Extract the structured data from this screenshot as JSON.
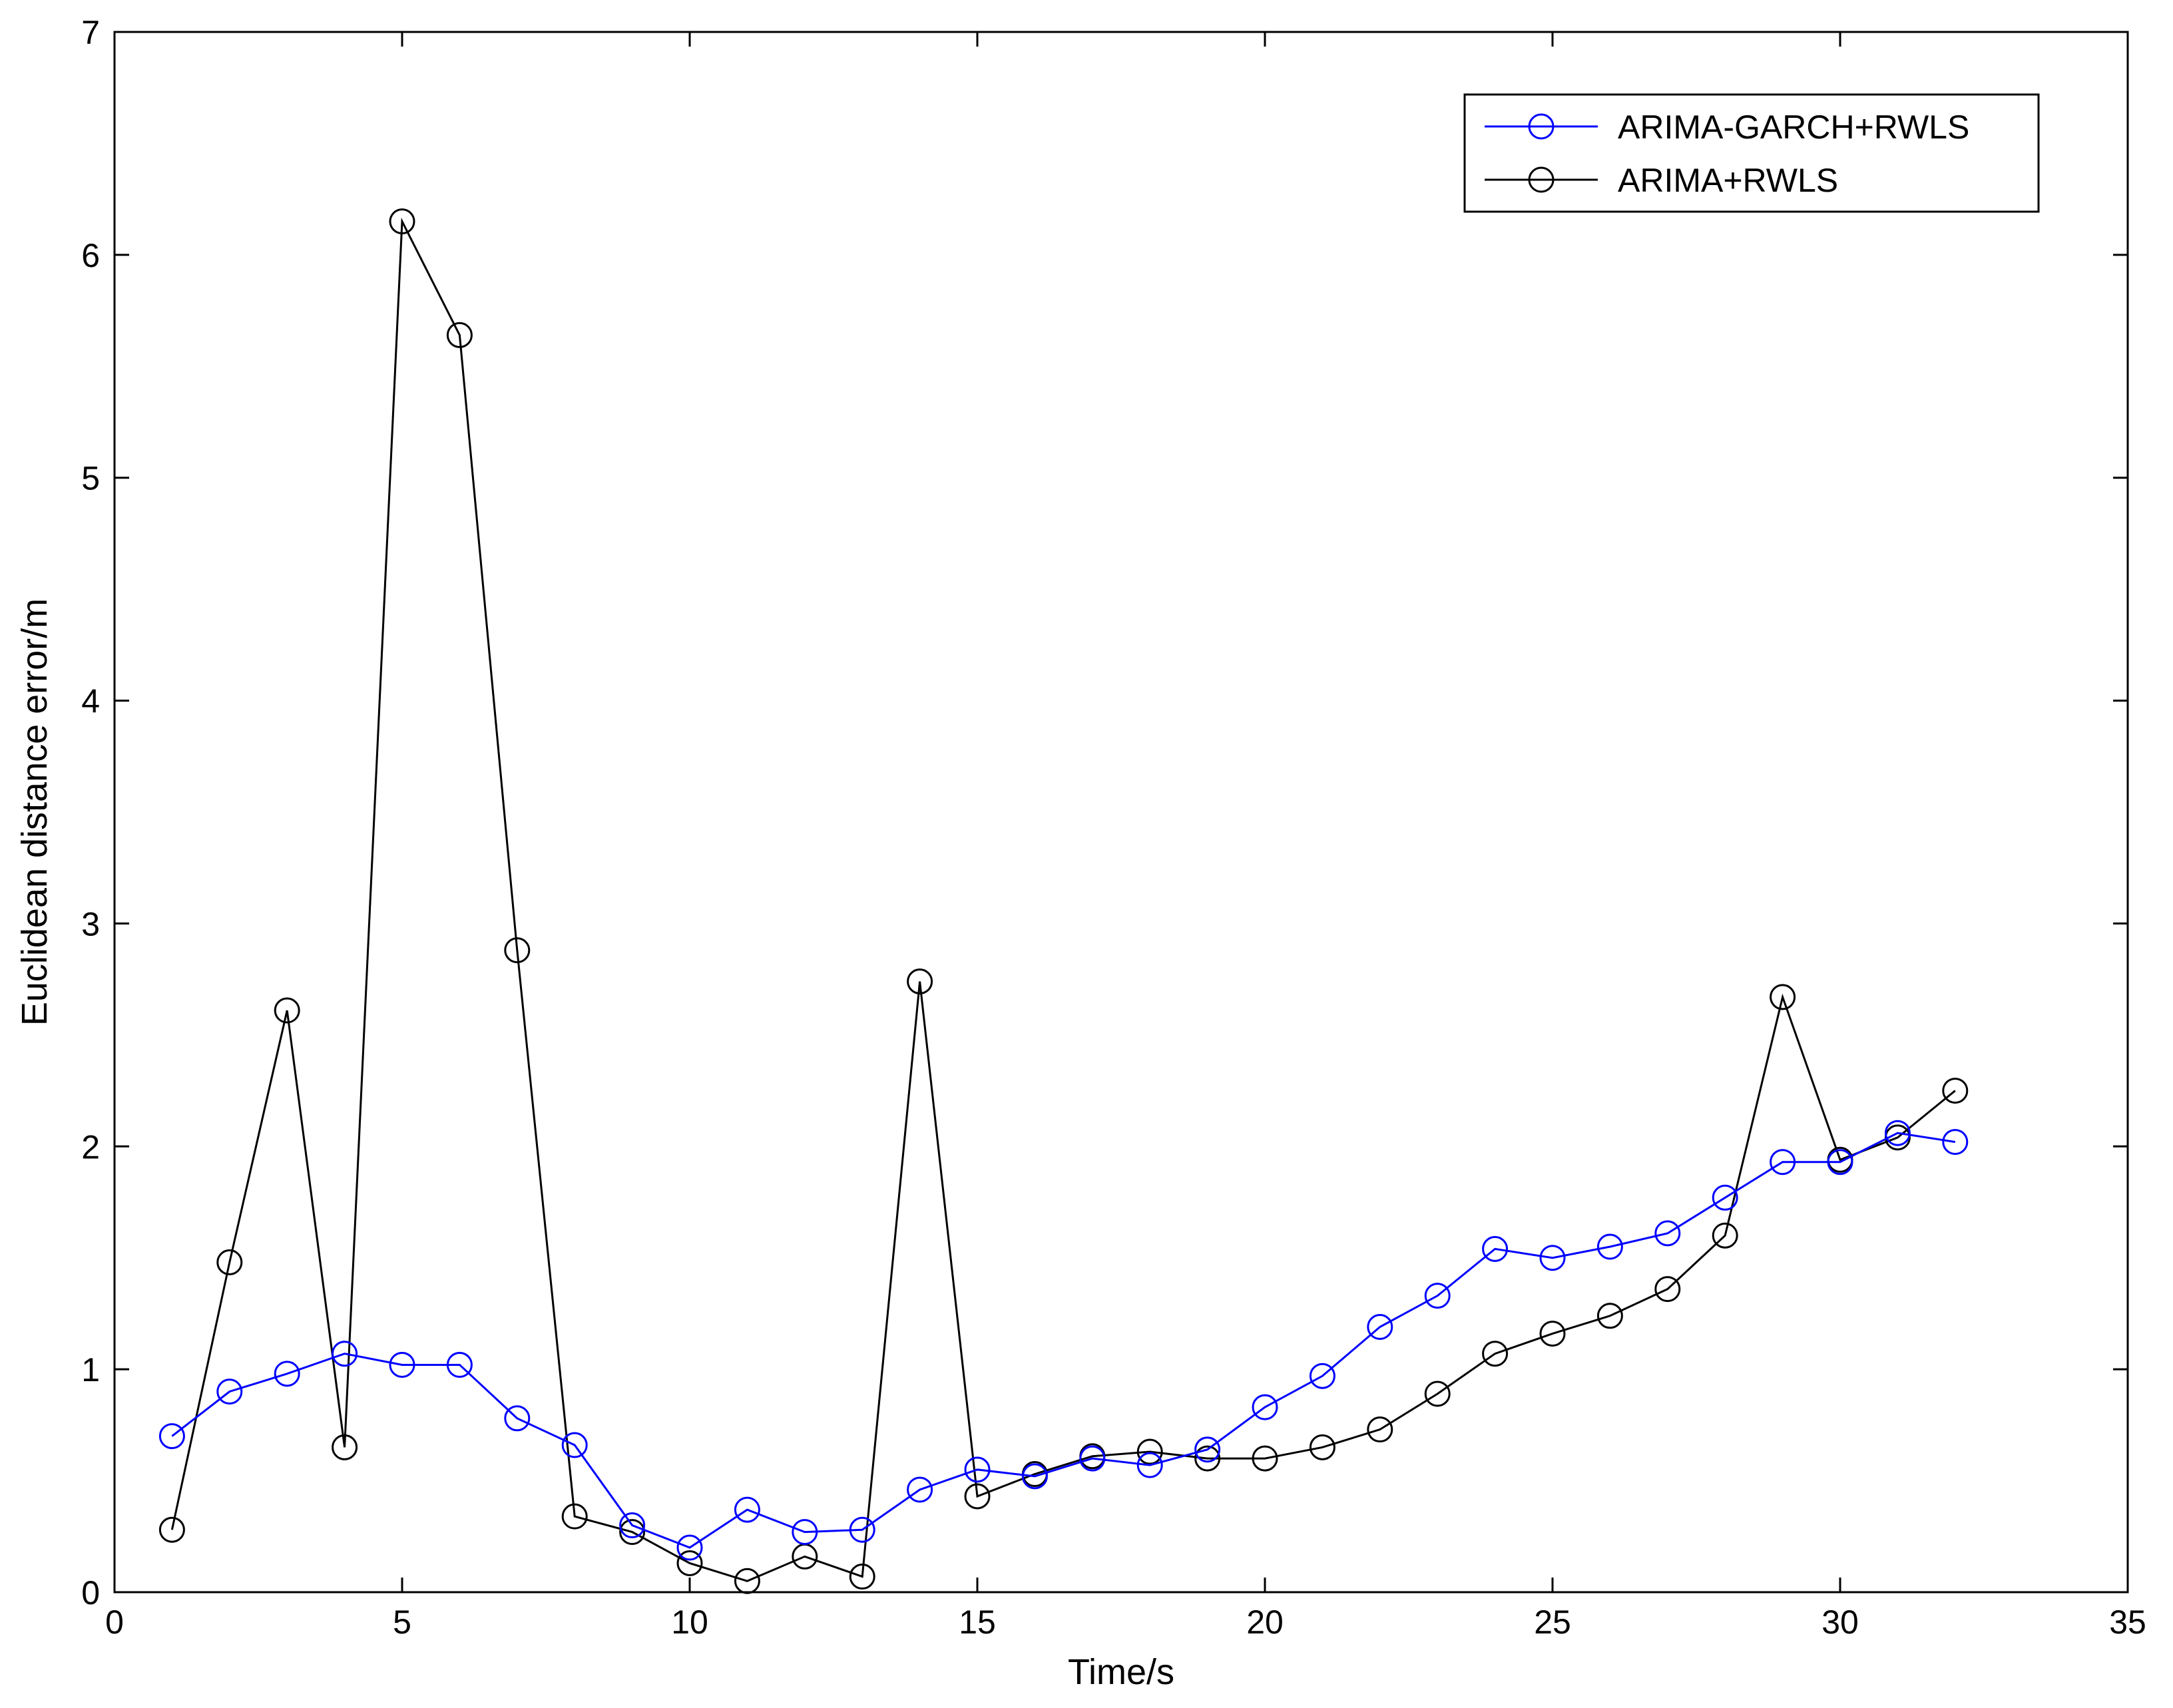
{
  "chart_data": {
    "type": "line",
    "xlabel": "Time/s",
    "ylabel": "Euclidean distance error/m",
    "xlim": [
      0,
      35
    ],
    "ylim": [
      0,
      7
    ],
    "xticks": [
      0,
      5,
      10,
      15,
      20,
      25,
      30,
      35
    ],
    "yticks": [
      0,
      1,
      2,
      3,
      4,
      5,
      6,
      7
    ],
    "grid": false,
    "legend_position": "top-right",
    "x": [
      1,
      2,
      3,
      4,
      5,
      6,
      7,
      8,
      9,
      10,
      11,
      12,
      13,
      14,
      15,
      16,
      17,
      18,
      19,
      20,
      21,
      22,
      23,
      24,
      25,
      26,
      27,
      28,
      29,
      30,
      31,
      32
    ],
    "series": [
      {
        "name": "ARIMA-GARCH+RWLS",
        "color": "#0000ff",
        "marker": "circle",
        "values": [
          0.7,
          0.9,
          0.98,
          1.07,
          1.02,
          1.02,
          0.78,
          0.66,
          0.3,
          0.2,
          0.37,
          0.27,
          0.28,
          0.46,
          0.55,
          0.52,
          0.6,
          0.57,
          0.64,
          0.83,
          0.97,
          1.19,
          1.33,
          1.54,
          1.5,
          1.55,
          1.61,
          1.77,
          1.93,
          1.93,
          2.06,
          2.02
        ]
      },
      {
        "name": "ARIMA+RWLS",
        "color": "#000000",
        "marker": "circle",
        "values": [
          0.28,
          1.48,
          2.61,
          0.65,
          6.15,
          5.64,
          2.88,
          0.34,
          0.27,
          0.13,
          0.05,
          0.16,
          0.07,
          2.74,
          0.43,
          0.53,
          0.61,
          0.63,
          0.6,
          0.6,
          0.65,
          0.73,
          0.89,
          1.07,
          1.16,
          1.24,
          1.36,
          1.6,
          2.67,
          1.94,
          2.04,
          2.25
        ]
      }
    ]
  }
}
